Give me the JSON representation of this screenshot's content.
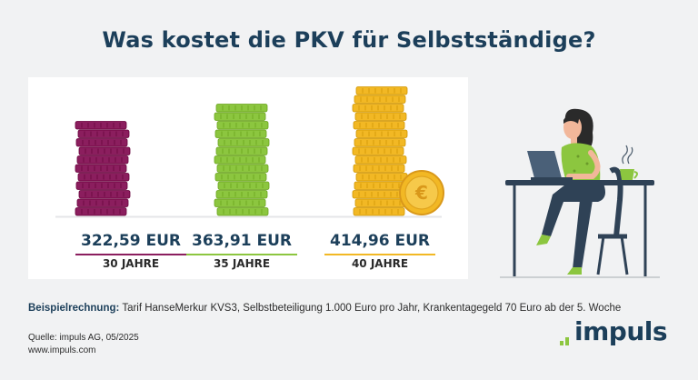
{
  "title": "Was kostet die PKV für Selbstständige?",
  "chart_data": {
    "type": "bar",
    "categories": [
      "30 JAHRE",
      "35 JAHRE",
      "40 JAHRE"
    ],
    "values": [
      322.59,
      363.91,
      414.96
    ],
    "value_labels": [
      "322,59 EUR",
      "363,91 EUR",
      "414,96 EUR"
    ],
    "unit": "EUR",
    "colors": [
      "#8b1e5e",
      "#8cc63f",
      "#f2b824"
    ]
  },
  "footnote": {
    "label": "Beispielrechnung:",
    "text": " Tarif HanseMerkur KVS3, Selbstbeteiligung 1.000 Euro pro Jahr, Krankentagegeld 70 Euro ab der 5. Woche"
  },
  "source": {
    "line1": "Quelle: impuls AG, 05/2025",
    "line2": "www.impuls.com"
  },
  "logo": {
    "text": "impuls",
    "accent": "#8dc63f",
    "color": "#1c3f5a"
  },
  "coin_symbol": "€",
  "illustration": "woman-working-at-laptop"
}
